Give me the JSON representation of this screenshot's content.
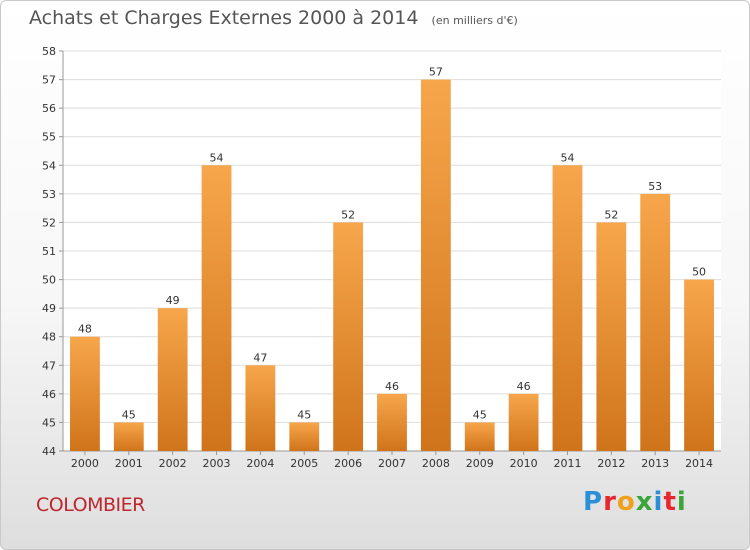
{
  "header": {
    "title": "Achats et Charges Externes 2000 à 2014",
    "subtitle": "(en milliers d'€)"
  },
  "footer": {
    "commune": "COLOMBIER",
    "logo_text": "Proxiti"
  },
  "colors": {
    "bar_light": "#f7a64b",
    "bar_dark": "#d0741b",
    "grid": "#dddddd",
    "axis_text": "#333333",
    "commune_text": "#c0262d"
  },
  "chart_data": {
    "type": "bar",
    "title": "Achats et Charges Externes 2000 à 2014",
    "subtitle": "(en milliers d'€)",
    "categories": [
      "2000",
      "2001",
      "2002",
      "2003",
      "2004",
      "2005",
      "2006",
      "2007",
      "2008",
      "2009",
      "2010",
      "2011",
      "2012",
      "2013",
      "2014"
    ],
    "values": [
      48,
      45,
      49,
      54,
      47,
      45,
      52,
      46,
      57,
      45,
      46,
      54,
      52,
      53,
      50
    ],
    "ylim": [
      44,
      58
    ],
    "yticks": [
      44,
      45,
      46,
      47,
      48,
      49,
      50,
      51,
      52,
      53,
      54,
      55,
      56,
      57,
      58
    ],
    "grid": true,
    "data_labels": true,
    "xlabel": "",
    "ylabel": ""
  }
}
